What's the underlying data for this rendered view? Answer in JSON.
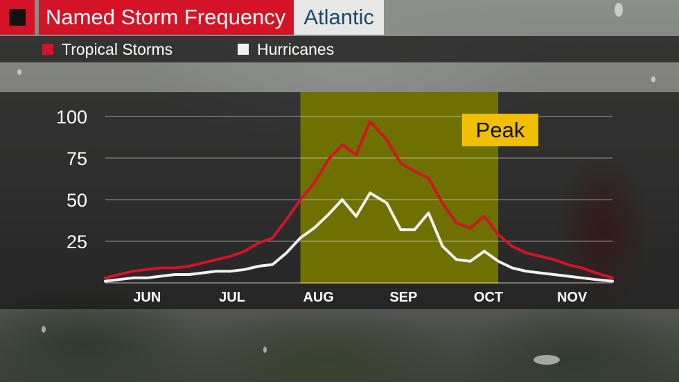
{
  "header": {
    "title": "Named Storm Frequency",
    "region": "Atlantic"
  },
  "legend": [
    {
      "label": "Tropical Storms",
      "color": "#d31427"
    },
    {
      "label": "Hurricanes",
      "color": "#f2f2f2"
    }
  ],
  "colors": {
    "brand_red": "#d31427",
    "peak_band": "#6e7000",
    "peak_label_bg": "#f0c000"
  },
  "chart_data": {
    "type": "line",
    "x_tick_labels": [
      "JUN",
      "JUL",
      "AUG",
      "SEP",
      "OCT",
      "NOV"
    ],
    "x_range": [
      "Jun 1",
      "Nov 30"
    ],
    "ylim": [
      0,
      100
    ],
    "y_ticks": [
      25,
      50,
      75,
      100
    ],
    "grid": true,
    "annotation": {
      "label": "Peak",
      "x_start": "Aug 10",
      "x_end": "Oct 20"
    },
    "x": [
      "Jun 1",
      "Jun 6",
      "Jun 11",
      "Jun 16",
      "Jun 21",
      "Jun 26",
      "Jul 1",
      "Jul 6",
      "Jul 11",
      "Jul 16",
      "Jul 21",
      "Jul 26",
      "Jul 31",
      "Aug 5",
      "Aug 10",
      "Aug 15",
      "Aug 20",
      "Aug 25",
      "Aug 30",
      "Sep 4",
      "Sep 10",
      "Sep 15",
      "Sep 20",
      "Sep 25",
      "Sep 30",
      "Oct 5",
      "Oct 10",
      "Oct 15",
      "Oct 20",
      "Oct 25",
      "Oct 30",
      "Nov 4",
      "Nov 9",
      "Nov 14",
      "Nov 19",
      "Nov 24",
      "Nov 30"
    ],
    "series": [
      {
        "name": "Tropical Storms",
        "values": [
          3,
          5,
          7,
          8,
          9,
          9,
          10,
          12,
          14,
          16,
          19,
          24,
          27,
          38,
          50,
          60,
          74,
          83,
          77,
          97,
          86,
          72,
          67,
          63,
          48,
          36,
          33,
          40,
          29,
          22,
          18,
          16,
          14,
          11,
          9,
          6,
          3
        ]
      },
      {
        "name": "Hurricanes",
        "values": [
          1,
          2,
          3,
          3,
          4,
          5,
          5,
          6,
          7,
          7,
          8,
          10,
          11,
          18,
          27,
          33,
          41,
          50,
          40,
          54,
          48,
          32,
          32,
          42,
          22,
          14,
          13,
          19,
          13,
          9,
          7,
          6,
          5,
          4,
          3,
          2,
          1
        ]
      }
    ]
  }
}
